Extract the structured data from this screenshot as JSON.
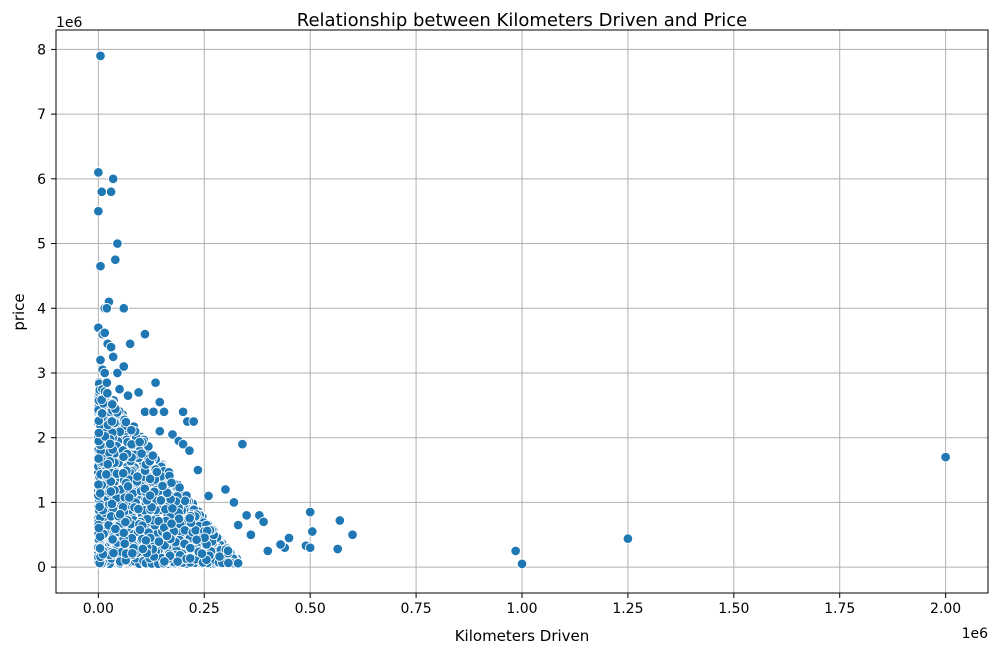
{
  "chart_data": {
    "type": "scatter",
    "title": "Relationship between Kilometers Driven and Price",
    "xlabel": "Kilometers Driven",
    "ylabel": "price",
    "x_offset_label": "1e6",
    "y_offset_label": "1e6",
    "xlim": [
      -0.1,
      2.1
    ],
    "ylim": [
      -0.4,
      8.3
    ],
    "x_ticks": [
      0.0,
      0.25,
      0.5,
      0.75,
      1.0,
      1.25,
      1.5,
      1.75,
      2.0
    ],
    "x_tick_labels": [
      "0.00",
      "0.25",
      "0.50",
      "0.75",
      "1.00",
      "1.25",
      "1.50",
      "1.75",
      "2.00"
    ],
    "y_ticks": [
      0,
      1,
      2,
      3,
      4,
      5,
      6,
      7,
      8
    ],
    "y_tick_labels": [
      "0",
      "1",
      "2",
      "3",
      "4",
      "5",
      "6",
      "7",
      "8"
    ],
    "grid": true,
    "point_color": "#1f77b4",
    "series": [
      {
        "x": [
          0.005,
          0.0,
          0.035,
          0.03,
          0.008,
          0.0,
          0.045,
          0.04,
          0.005,
          0.025,
          0.015,
          0.02,
          0.06,
          0.0,
          0.01,
          0.015,
          0.022,
          0.11,
          0.075,
          0.005,
          0.035,
          0.03,
          0.01,
          0.015,
          0.045,
          0.06,
          0.02,
          0.05,
          0.135,
          0.07,
          0.095,
          0.11,
          0.145,
          0.13,
          0.155,
          0.2,
          0.21,
          0.225,
          0.175,
          0.145,
          0.19,
          0.2,
          0.215,
          0.235,
          0.34,
          0.3,
          0.32,
          0.26,
          0.35,
          0.38,
          0.33,
          0.39,
          0.45,
          0.5,
          0.505,
          0.57,
          0.6,
          0.44,
          0.43,
          0.36,
          0.4,
          0.49,
          0.5,
          0.565,
          0.985,
          1.0,
          1.25,
          2.0
        ],
        "y": [
          7.9,
          6.1,
          6.0,
          5.8,
          5.8,
          5.5,
          5.0,
          4.75,
          4.65,
          4.1,
          4.0,
          4.0,
          4.0,
          3.7,
          3.6,
          3.62,
          3.45,
          3.6,
          3.45,
          3.2,
          3.25,
          3.4,
          3.05,
          3.0,
          3.0,
          3.1,
          2.85,
          2.75,
          2.85,
          2.65,
          2.7,
          2.4,
          2.55,
          2.4,
          2.4,
          2.4,
          2.25,
          2.25,
          2.05,
          2.1,
          1.95,
          1.9,
          1.8,
          1.5,
          1.9,
          1.2,
          1.0,
          1.1,
          0.8,
          0.8,
          0.65,
          0.7,
          0.45,
          0.85,
          0.55,
          0.72,
          0.5,
          0.3,
          0.35,
          0.5,
          0.25,
          0.33,
          0.3,
          0.28,
          0.25,
          0.05,
          0.44,
          1.7
        ]
      }
    ]
  }
}
